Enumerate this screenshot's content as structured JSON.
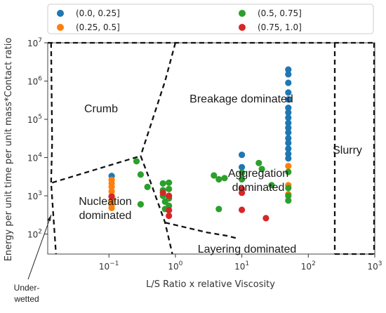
{
  "chart_data": {
    "type": "scatter",
    "xlabel": "L/S Ratio x relative Viscosity",
    "ylabel": "Energy per unit time per unit mass*Contact ratio",
    "xscale": "log",
    "yscale": "log",
    "xlim": [
      0.012,
      1000
    ],
    "ylim": [
      30,
      10000000
    ],
    "x_ticks": [
      {
        "value": 0.1,
        "base": "10",
        "exp": "−1"
      },
      {
        "value": 1,
        "base": "10",
        "exp": "0"
      },
      {
        "value": 10,
        "base": "10",
        "exp": "1"
      },
      {
        "value": 100,
        "base": "10",
        "exp": "2"
      },
      {
        "value": 1000,
        "base": "10",
        "exp": "3"
      }
    ],
    "y_ticks": [
      {
        "value": 100,
        "base": "10",
        "exp": "2"
      },
      {
        "value": 1000,
        "base": "10",
        "exp": "3"
      },
      {
        "value": 10000,
        "base": "10",
        "exp": "4"
      },
      {
        "value": 100000,
        "base": "10",
        "exp": "5"
      },
      {
        "value": 1000000,
        "base": "10",
        "exp": "6"
      },
      {
        "value": 10000000,
        "base": "10",
        "exp": "7"
      }
    ],
    "grid": false,
    "legend_position": "top, outside plot, 2 columns",
    "series": [
      {
        "name": "(0.0, 0.25]",
        "color": "#1f77b4",
        "points": [
          [
            0.11,
            3300
          ],
          [
            10,
            11800
          ],
          [
            10,
            5600
          ],
          [
            50,
            2000000
          ],
          [
            50,
            1500000
          ],
          [
            50,
            900000
          ],
          [
            50,
            500000
          ],
          [
            50,
            330000
          ],
          [
            50,
            200000
          ],
          [
            50,
            150000
          ],
          [
            50,
            110000
          ],
          [
            50,
            80000
          ],
          [
            50,
            60000
          ],
          [
            50,
            45000
          ],
          [
            50,
            32000
          ],
          [
            50,
            24000
          ],
          [
            50,
            17000
          ],
          [
            50,
            12500
          ],
          [
            50,
            9500
          ]
        ]
      },
      {
        "name": "(0.25, 0.5]",
        "color": "#ff7f0e",
        "points": [
          [
            0.11,
            2600
          ],
          [
            0.11,
            2100
          ],
          [
            0.11,
            1700
          ],
          [
            0.11,
            1300
          ],
          [
            0.11,
            1000
          ],
          [
            0.11,
            750
          ],
          [
            0.11,
            580
          ],
          [
            0.11,
            480
          ],
          [
            50,
            6000
          ],
          [
            50,
            1900
          ],
          [
            50,
            1100
          ]
        ]
      },
      {
        "name": "(0.5, 0.75]",
        "color": "#2ca02c",
        "points": [
          [
            0.26,
            8000
          ],
          [
            0.3,
            3600
          ],
          [
            0.3,
            600
          ],
          [
            0.38,
            1700
          ],
          [
            0.65,
            2100
          ],
          [
            0.65,
            1400
          ],
          [
            0.65,
            1000
          ],
          [
            0.7,
            700
          ],
          [
            0.7,
            450
          ],
          [
            0.8,
            2200
          ],
          [
            0.8,
            1500
          ],
          [
            0.8,
            850
          ],
          [
            0.8,
            550
          ],
          [
            3.8,
            3400
          ],
          [
            4.5,
            2700
          ],
          [
            4.5,
            450
          ],
          [
            5.5,
            2900
          ],
          [
            10,
            4000
          ],
          [
            10,
            2700
          ],
          [
            18,
            7200
          ],
          [
            20,
            5000
          ],
          [
            28,
            1900
          ],
          [
            50,
            4200
          ],
          [
            50,
            1600
          ],
          [
            50,
            1000
          ],
          [
            50,
            750
          ]
        ]
      },
      {
        "name": "(0.75, 1.0]",
        "color": "#d62728",
        "points": [
          [
            0.11,
            950
          ],
          [
            0.65,
            1200
          ],
          [
            0.8,
            1000
          ],
          [
            0.8,
            420
          ],
          [
            0.8,
            300
          ],
          [
            10,
            1500
          ],
          [
            10,
            430
          ],
          [
            10,
            1200
          ],
          [
            23,
            260
          ]
        ]
      }
    ],
    "region_labels": [
      "Crumb",
      "Breakage dominated",
      "Slurry",
      "Aggregation\ndominated",
      "Nucleation\ndominated",
      "Layering dominated"
    ],
    "annotation": "Under-\nwetted"
  }
}
